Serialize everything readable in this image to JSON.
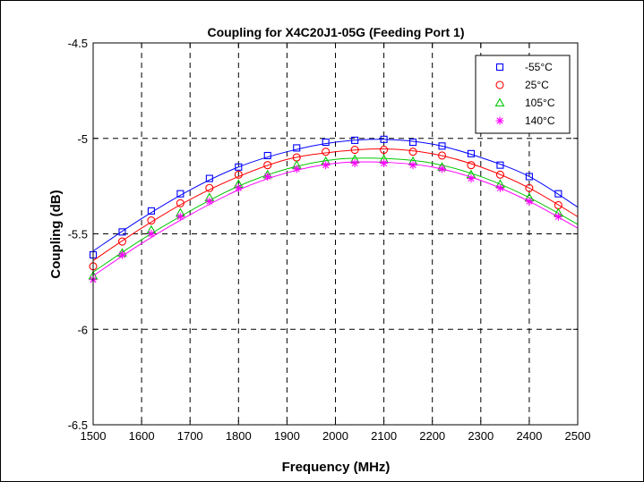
{
  "chart_data": {
    "type": "line",
    "title": "Coupling for X4C20J1-05G (Feeding Port 1)",
    "xlabel": "Frequency (MHz)",
    "ylabel": "Coupling (dB)",
    "xlim": [
      1500,
      2500
    ],
    "ylim": [
      -6.5,
      -4.5
    ],
    "xticks": [
      1500,
      1600,
      1700,
      1800,
      1900,
      2000,
      2100,
      2200,
      2300,
      2400,
      2500
    ],
    "yticks": [
      -6.5,
      -6,
      -5.5,
      -5,
      -4.5
    ],
    "xtick_labels": [
      "1500",
      "1600",
      "1700",
      "1800",
      "1900",
      "2000",
      "2100",
      "2200",
      "2300",
      "2400",
      "2500"
    ],
    "ytick_labels": [
      "-6.5",
      "-6",
      "-5.5",
      "-5",
      "-4.5"
    ],
    "grid": true,
    "grid_style": "dashed",
    "legend_position": "top-right",
    "x": [
      1500,
      1560,
      1620,
      1680,
      1740,
      1800,
      1860,
      1920,
      1980,
      2040,
      2100,
      2160,
      2220,
      2280,
      2340,
      2400,
      2460
    ],
    "series": [
      {
        "name": "-55°C",
        "color": "#0000ff",
        "marker": "square",
        "values": [
          -5.61,
          -5.49,
          -5.38,
          -5.29,
          -5.21,
          -5.15,
          -5.09,
          -5.05,
          -5.02,
          -5.01,
          -5.005,
          -5.02,
          -5.04,
          -5.08,
          -5.14,
          -5.2,
          -5.29
        ],
        "fit": [
          [
            1500,
            -5.59
          ],
          [
            1600,
            -5.42
          ],
          [
            1700,
            -5.27
          ],
          [
            1800,
            -5.15
          ],
          [
            1900,
            -5.07
          ],
          [
            2000,
            -5.02
          ],
          [
            2100,
            -5.005
          ],
          [
            2200,
            -5.03
          ],
          [
            2300,
            -5.1
          ],
          [
            2400,
            -5.2
          ],
          [
            2500,
            -5.36
          ]
        ]
      },
      {
        "name": "25°C",
        "color": "#ff0000",
        "marker": "circle",
        "values": [
          -5.67,
          -5.54,
          -5.43,
          -5.34,
          -5.26,
          -5.19,
          -5.14,
          -5.1,
          -5.07,
          -5.06,
          -5.06,
          -5.07,
          -5.09,
          -5.14,
          -5.19,
          -5.26,
          -5.35
        ],
        "fit": [
          [
            1500,
            -5.64
          ],
          [
            1600,
            -5.47
          ],
          [
            1700,
            -5.32
          ],
          [
            1800,
            -5.2
          ],
          [
            1900,
            -5.11
          ],
          [
            2000,
            -5.07
          ],
          [
            2100,
            -5.055
          ],
          [
            2200,
            -5.08
          ],
          [
            2300,
            -5.15
          ],
          [
            2400,
            -5.26
          ],
          [
            2500,
            -5.41
          ]
        ]
      },
      {
        "name": "105°C",
        "color": "#00c800",
        "marker": "triangle",
        "values": [
          -5.72,
          -5.6,
          -5.48,
          -5.39,
          -5.31,
          -5.24,
          -5.19,
          -5.14,
          -5.12,
          -5.11,
          -5.11,
          -5.12,
          -5.15,
          -5.19,
          -5.24,
          -5.31,
          -5.39
        ],
        "fit": [
          [
            1500,
            -5.7
          ],
          [
            1600,
            -5.53
          ],
          [
            1700,
            -5.38
          ],
          [
            1800,
            -5.25
          ],
          [
            1900,
            -5.16
          ],
          [
            2000,
            -5.11
          ],
          [
            2100,
            -5.105
          ],
          [
            2200,
            -5.13
          ],
          [
            2300,
            -5.2
          ],
          [
            2400,
            -5.31
          ],
          [
            2500,
            -5.45
          ]
        ]
      },
      {
        "name": "140°C",
        "color": "#ff00ff",
        "marker": "asterisk",
        "values": [
          -5.74,
          -5.61,
          -5.5,
          -5.41,
          -5.33,
          -5.26,
          -5.2,
          -5.16,
          -5.14,
          -5.13,
          -5.13,
          -5.14,
          -5.16,
          -5.21,
          -5.26,
          -5.33,
          -5.41
        ],
        "fit": [
          [
            1500,
            -5.72
          ],
          [
            1600,
            -5.55
          ],
          [
            1700,
            -5.4
          ],
          [
            1800,
            -5.27
          ],
          [
            1900,
            -5.18
          ],
          [
            2000,
            -5.13
          ],
          [
            2100,
            -5.125
          ],
          [
            2200,
            -5.15
          ],
          [
            2300,
            -5.22
          ],
          [
            2400,
            -5.33
          ],
          [
            2500,
            -5.47
          ]
        ]
      }
    ]
  }
}
